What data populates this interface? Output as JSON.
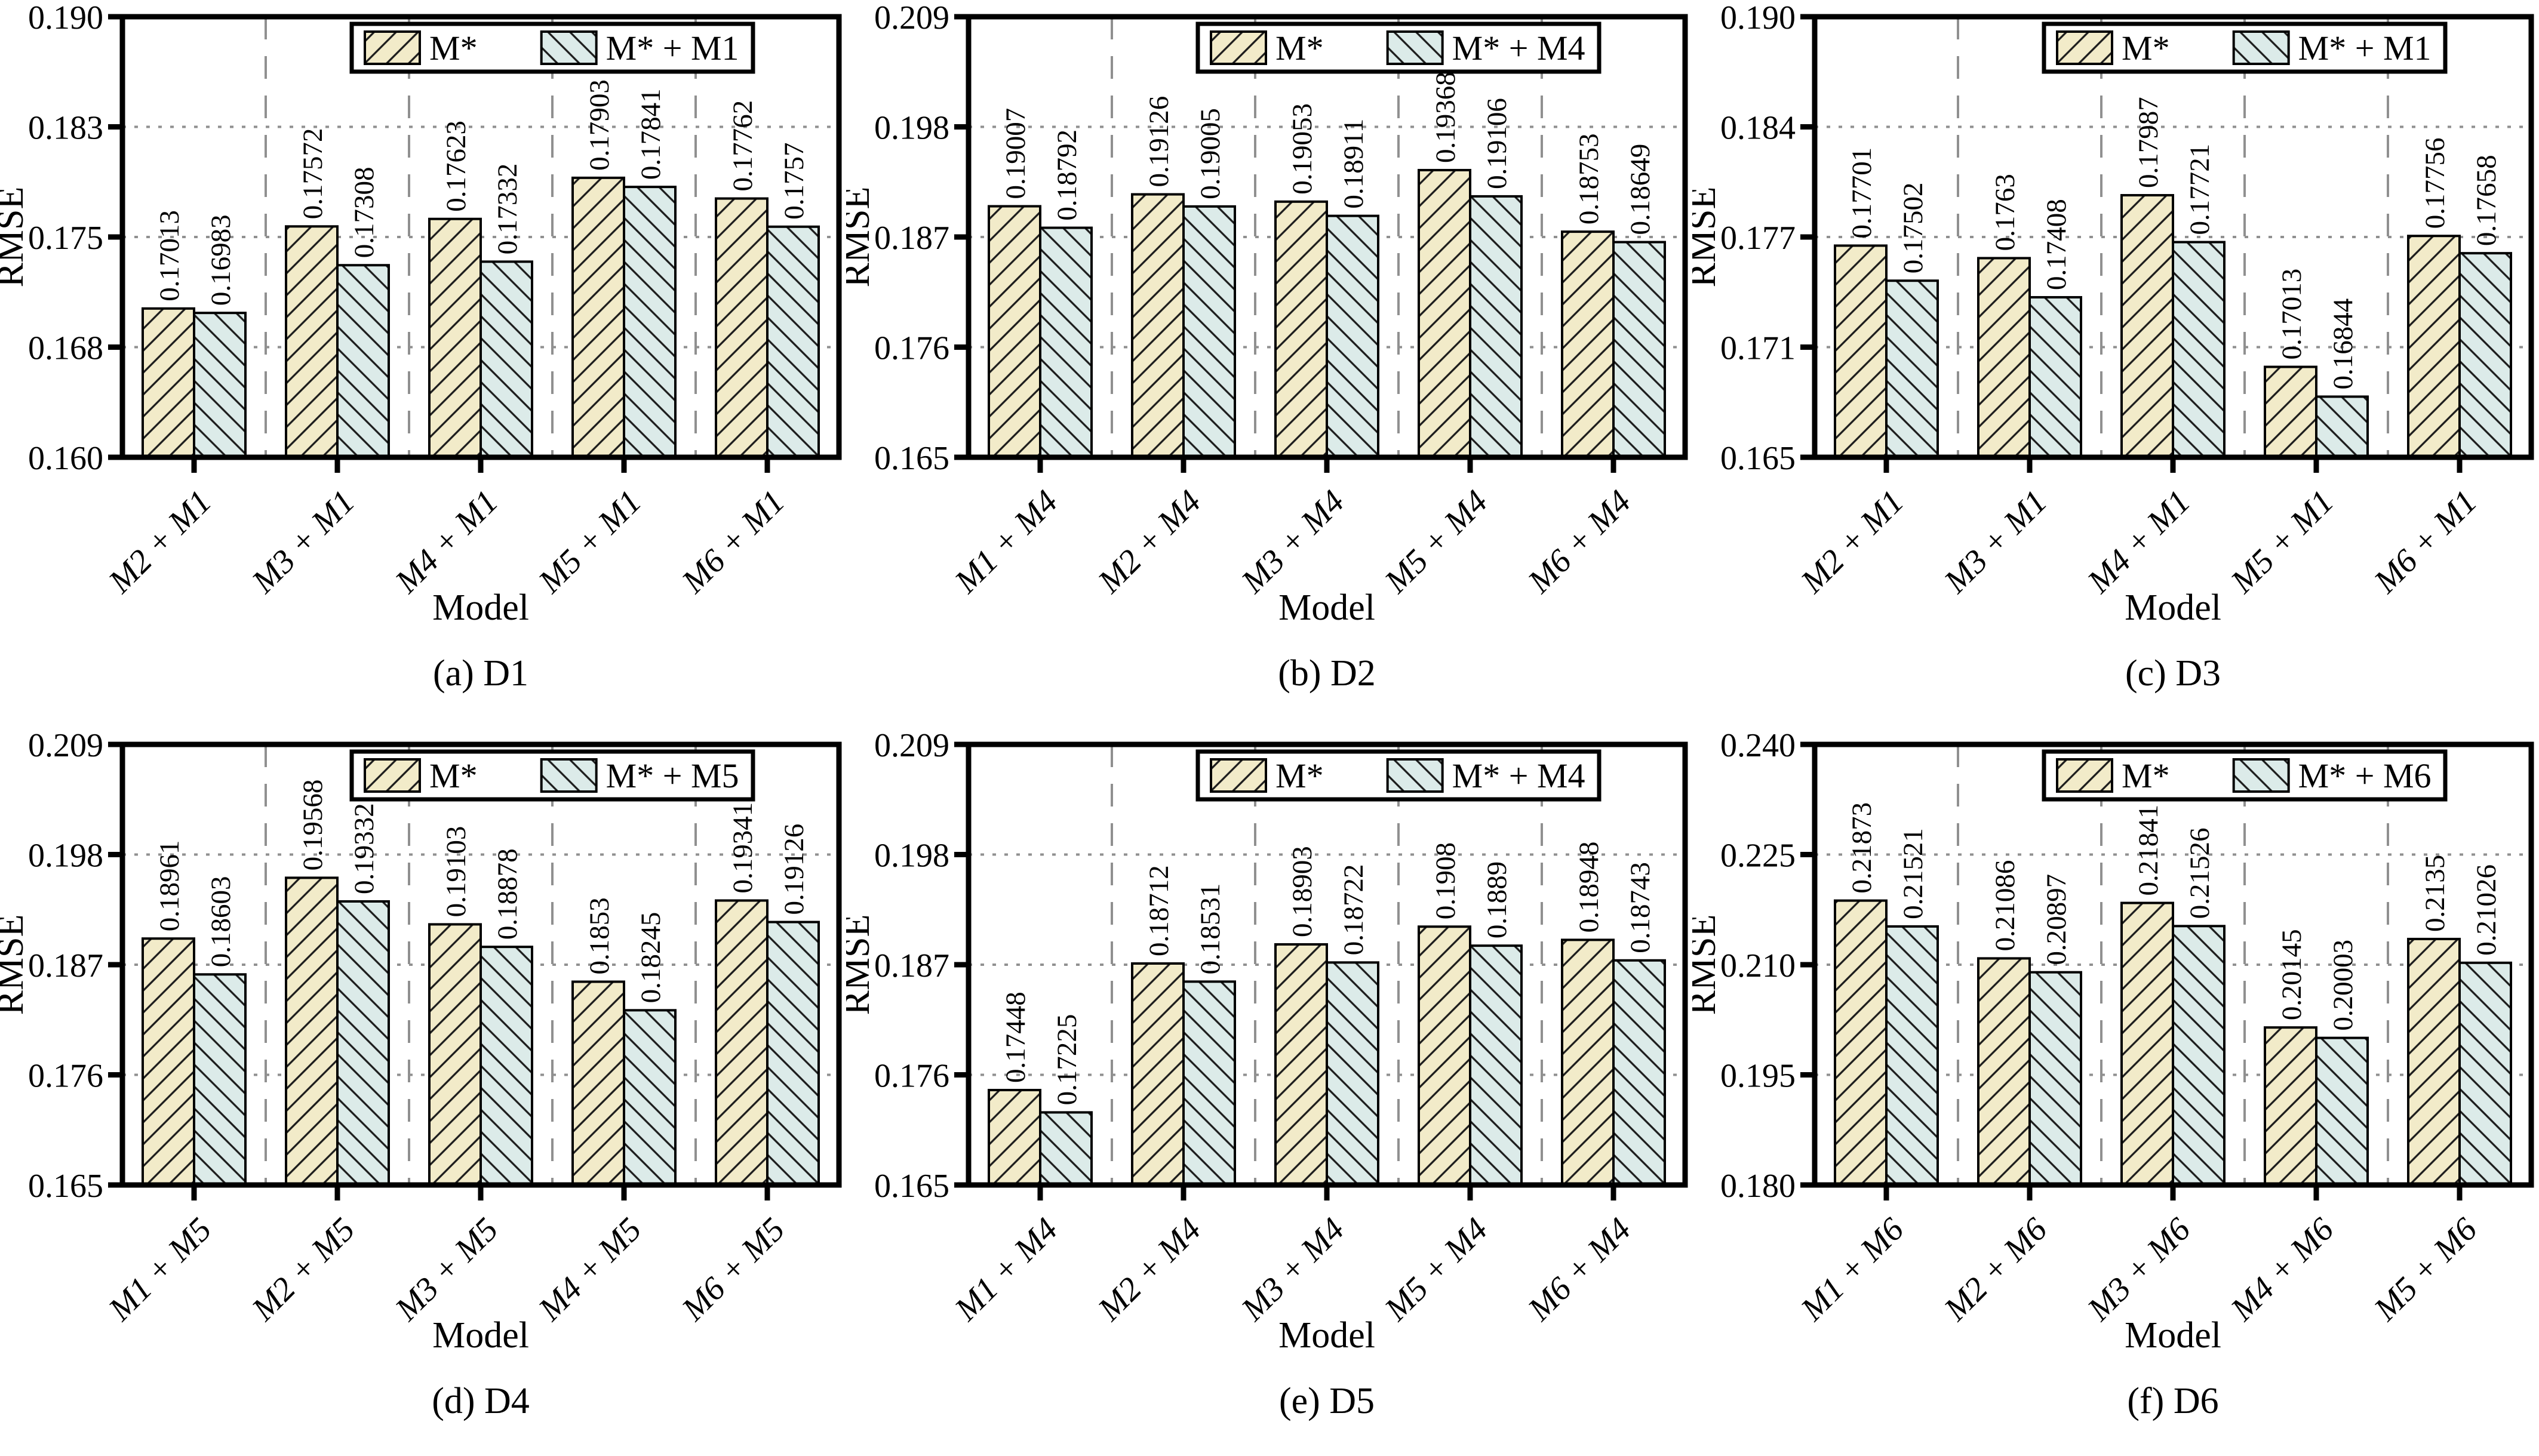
{
  "page": {
    "background": "#ffffff"
  },
  "colors": {
    "bar_m_star": "#f2ebc9",
    "bar_m_plus": "#dcebe9",
    "hatch": "#1c1c1c",
    "grid": "#909090",
    "frame": "#000000",
    "legend_bg": "#ffffff"
  },
  "chart_data": [
    {
      "type": "bar",
      "caption": "(a) D1",
      "ylabel": "RMSE",
      "xlabel": "Model",
      "categories": [
        "M2 + M1",
        "M3 + M1",
        "M4 + M1",
        "M5 + M1",
        "M6 + M1"
      ],
      "series": [
        {
          "name": "M*",
          "values": [
            "0.17013",
            "0.17572",
            "0.17623",
            "0.17903",
            "0.17762"
          ]
        },
        {
          "name": "M* + M1",
          "values": [
            "0.16983",
            "0.17308",
            "0.17332",
            "0.17841",
            "0.1757"
          ]
        }
      ],
      "yticks": [
        "0.160",
        "0.168",
        "0.175",
        "0.183",
        "0.190"
      ],
      "ylim": [
        0.16,
        0.19
      ],
      "grid": "on",
      "legend_position": "top"
    },
    {
      "type": "bar",
      "caption": "(b) D2",
      "ylabel": "RMSE",
      "xlabel": "Model",
      "categories": [
        "M1 + M4",
        "M2 + M4",
        "M3 + M4",
        "M5 + M4",
        "M6 + M4"
      ],
      "series": [
        {
          "name": "M*",
          "values": [
            "0.19007",
            "0.19126",
            "0.19053",
            "0.19368",
            "0.18753"
          ]
        },
        {
          "name": "M* + M4",
          "values": [
            "0.18792",
            "0.19005",
            "0.18911",
            "0.19106",
            "0.18649"
          ]
        }
      ],
      "yticks": [
        "0.165",
        "0.176",
        "0.187",
        "0.198",
        "0.209"
      ],
      "ylim": [
        0.165,
        0.209
      ],
      "grid": "on",
      "legend_position": "top"
    },
    {
      "type": "bar",
      "caption": "(c) D3",
      "ylabel": "RMSE",
      "xlabel": "Model",
      "categories": [
        "M2 + M1",
        "M3 + M1",
        "M4 + M1",
        "M5 + M1",
        "M6 + M1"
      ],
      "series": [
        {
          "name": "M*",
          "values": [
            "0.17701",
            "0.1763",
            "0.17987",
            "0.17013",
            "0.17756"
          ]
        },
        {
          "name": "M* + M1",
          "values": [
            "0.17502",
            "0.17408",
            "0.17721",
            "0.16844",
            "0.17658"
          ]
        }
      ],
      "yticks": [
        "0.165",
        "0.171",
        "0.177",
        "0.184",
        "0.190"
      ],
      "ylim": [
        0.165,
        0.19
      ],
      "grid": "on",
      "legend_position": "top"
    },
    {
      "type": "bar",
      "caption": "(d) D4",
      "ylabel": "RMSE",
      "xlabel": "Model",
      "categories": [
        "M1 + M5",
        "M2 + M5",
        "M3 + M5",
        "M4 + M5",
        "M6 + M5"
      ],
      "series": [
        {
          "name": "M*",
          "values": [
            "0.18961",
            "0.19568",
            "0.19103",
            "0.1853",
            "0.19341"
          ]
        },
        {
          "name": "M* + M5",
          "values": [
            "0.18603",
            "0.19332",
            "0.18878",
            "0.18245",
            "0.19126"
          ]
        }
      ],
      "yticks": [
        "0.165",
        "0.176",
        "0.187",
        "0.198",
        "0.209"
      ],
      "ylim": [
        0.165,
        0.209
      ],
      "grid": "on",
      "legend_position": "top"
    },
    {
      "type": "bar",
      "caption": "(e) D5",
      "ylabel": "RMSE",
      "xlabel": "Model",
      "categories": [
        "M1 + M4",
        "M2 + M4",
        "M3 + M4",
        "M5 + M4",
        "M6 + M4"
      ],
      "series": [
        {
          "name": "M*",
          "values": [
            "0.17448",
            "0.18712",
            "0.18903",
            "0.1908",
            "0.18948"
          ]
        },
        {
          "name": "M* + M4",
          "values": [
            "0.17225",
            "0.18531",
            "0.18722",
            "0.1889",
            "0.18743"
          ]
        }
      ],
      "yticks": [
        "0.165",
        "0.176",
        "0.187",
        "0.198",
        "0.209"
      ],
      "ylim": [
        0.165,
        0.209
      ],
      "grid": "on",
      "legend_position": "top"
    },
    {
      "type": "bar",
      "caption": "(f) D6",
      "ylabel": "RMSE",
      "xlabel": "Model",
      "categories": [
        "M1 + M6",
        "M2 + M6",
        "M3 + M6",
        "M4 + M6",
        "M5 + M6"
      ],
      "series": [
        {
          "name": "M*",
          "values": [
            "0.21873",
            "0.21086",
            "0.21841",
            "0.20145",
            "0.2135"
          ]
        },
        {
          "name": "M* + M6",
          "values": [
            "0.21521",
            "0.20897",
            "0.21526",
            "0.20003",
            "0.21026"
          ]
        }
      ],
      "yticks": [
        "0.180",
        "0.195",
        "0.210",
        "0.225",
        "0.240"
      ],
      "ylim": [
        0.18,
        0.24
      ],
      "grid": "on",
      "legend_position": "top"
    }
  ]
}
